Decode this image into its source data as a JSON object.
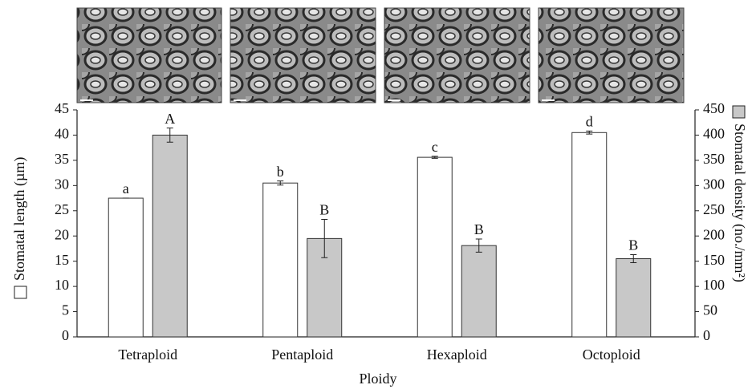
{
  "chart_data": {
    "type": "bar",
    "x_label": "Ploidy",
    "categories": [
      "Tetraploid",
      "Pentaploid",
      "Hexaploid",
      "Octoploid"
    ],
    "series": [
      {
        "name": "Stomatal length (µm)",
        "color": "#ffffff",
        "axis": "y",
        "values": [
          27.5,
          30.5,
          35.6,
          40.5
        ],
        "errors": [
          0,
          0.4,
          0.2,
          0.3
        ],
        "letters": [
          "a",
          "b",
          "c",
          "d"
        ]
      },
      {
        "name": "Stomatal density (no./mm²)",
        "color": "#c8c8c8",
        "axis": "y2",
        "values": [
          400,
          195,
          181,
          155
        ],
        "errors": [
          14,
          38,
          13,
          8
        ],
        "letters": [
          "A",
          "B",
          "B",
          "B"
        ]
      }
    ],
    "ylim": [
      0,
      45
    ],
    "yticks": [
      0,
      5,
      10,
      15,
      20,
      25,
      30,
      35,
      40,
      45
    ],
    "y2lim": [
      0,
      450
    ],
    "y2ticks": [
      0,
      50,
      100,
      150,
      200,
      250,
      300,
      350,
      400,
      450
    ]
  }
}
